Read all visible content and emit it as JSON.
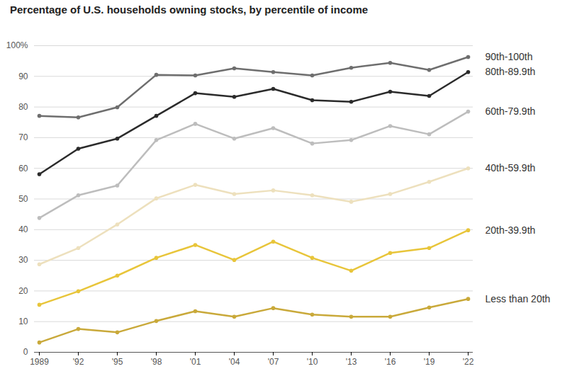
{
  "chart_data": {
    "type": "line",
    "title": "Percentage of U.S. households owning stocks, by percentile of income",
    "categories": [
      "1989",
      "'92",
      "'95",
      "'98",
      "'01",
      "'04",
      "'07",
      "'10",
      "'13",
      "'16",
      "'19",
      "'22"
    ],
    "series": [
      {
        "name": "90th-100th",
        "color": "#6e6e6e",
        "values": [
          77.1,
          76.6,
          79.9,
          90.5,
          90.3,
          92.6,
          91.4,
          90.3,
          92.8,
          94.4,
          92.1,
          96.3
        ]
      },
      {
        "name": "80th-89.9th",
        "color": "#2b2b2b",
        "values": [
          58.1,
          66.4,
          69.7,
          77.1,
          84.5,
          83.3,
          85.9,
          82.2,
          81.7,
          85.0,
          83.6,
          91.4
        ]
      },
      {
        "name": "60th-79.9th",
        "color": "#bdbdbd",
        "values": [
          43.8,
          51.2,
          54.4,
          69.2,
          74.5,
          69.7,
          73.1,
          68.1,
          69.2,
          73.8,
          71.1,
          78.5
        ]
      },
      {
        "name": "40th-59.9th",
        "color": "#ede0bd",
        "values": [
          28.7,
          34.0,
          41.7,
          50.2,
          54.6,
          51.6,
          52.8,
          51.2,
          49.1,
          51.6,
          55.6,
          60.0
        ]
      },
      {
        "name": "20th-39.9th",
        "color": "#e8c53a",
        "values": [
          15.5,
          19.9,
          25.0,
          30.8,
          35.0,
          30.1,
          36.1,
          30.8,
          26.6,
          32.4,
          34.0,
          39.8
        ]
      },
      {
        "name": "Less than 20th",
        "color": "#c9a93a",
        "values": [
          3.2,
          7.6,
          6.5,
          10.2,
          13.4,
          11.6,
          14.4,
          12.3,
          11.6,
          11.6,
          14.6,
          17.4
        ]
      }
    ],
    "ylim": [
      0,
      100
    ],
    "yticks": [
      0,
      10,
      20,
      30,
      40,
      50,
      60,
      70,
      80,
      90,
      {
        "value": 100,
        "label": "100%"
      }
    ],
    "grid": true,
    "marker": "circle"
  }
}
